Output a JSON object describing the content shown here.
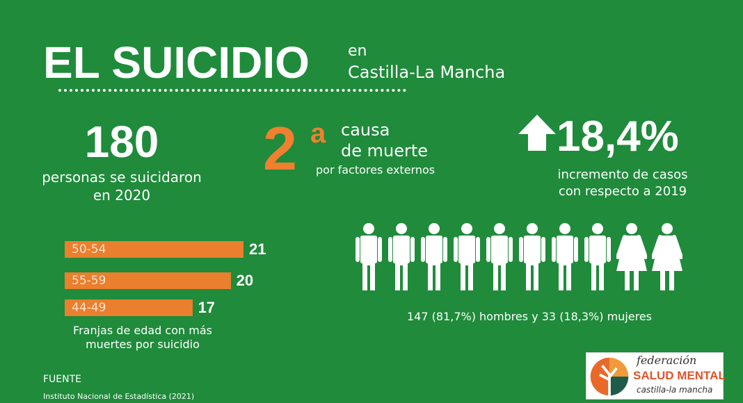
{
  "header": {
    "title": "EL SUICIDIO",
    "subtitle_line1": "en",
    "subtitle_line2": "Castilla-La Mancha"
  },
  "stats": {
    "deaths": {
      "value": "180",
      "label_line1": "personas se suicidaron",
      "label_line2": "en 2020"
    },
    "cause": {
      "rank": "2",
      "rank_suffix": "a",
      "line1": "causa",
      "line2": "de muerte",
      "line3": "por factores externos"
    },
    "increase": {
      "icon": "arrow-up-icon",
      "value": "18,4%",
      "line1": "incremento de casos",
      "line2": "con respecto a 2019"
    }
  },
  "gender": {
    "men_icons": 8,
    "women_icons": 2,
    "text": "147 (81,7%) hombres y 33 (18,3%) mujeres"
  },
  "chart_data": {
    "type": "bar",
    "orientation": "horizontal",
    "categories": [
      "50-54",
      "55-59",
      "44-49"
    ],
    "values": [
      21,
      20,
      17
    ],
    "value_labels": [
      "21",
      "20",
      "17"
    ],
    "caption_line1": "Franjas de edad con más",
    "caption_line2": "muertes por suicidio",
    "bar_color": "#ea7f2e"
  },
  "source": {
    "label": "FUENTE",
    "text": "Instituto Nacional de Estadística (2021)"
  },
  "logo": {
    "line1": "federación",
    "line2": "SALUD MENTAL",
    "line3": "castilla-la mancha"
  },
  "colors": {
    "background": "#1f8b3b",
    "accent": "#ee8030",
    "text": "#ffffff"
  }
}
